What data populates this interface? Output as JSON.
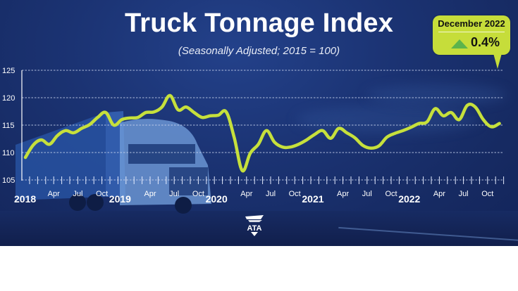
{
  "header": {
    "title": "Truck Tonnage Index",
    "subtitle": "(Seasonally Adjusted; 2015 = 100)"
  },
  "callout": {
    "month": "December 2022",
    "change": "0.4%",
    "direction": "up-arrow-icon"
  },
  "logo": {
    "text": "ATA"
  },
  "colors": {
    "background": "#1b3373",
    "line": "#c6e03c",
    "callout": "#c6dd3a",
    "arrow": "#5cb44c",
    "grid": "#ffffff"
  },
  "chart_data": {
    "type": "line",
    "title": "Truck Tonnage Index",
    "subtitle": "(Seasonally Adjusted; 2015 = 100)",
    "xlabel": "",
    "ylabel": "",
    "ylim": [
      105,
      125
    ],
    "yticks": [
      105,
      110,
      115,
      120,
      125
    ],
    "grid": "horizontal dashed",
    "legend": "none",
    "x_tick_labels": [
      "2018",
      "Apr",
      "Jul",
      "Oct",
      "2019",
      "Apr",
      "Jul",
      "Oct",
      "2020",
      "Apr",
      "Jul",
      "Oct",
      "2021",
      "Apr",
      "Jul",
      "Oct",
      "2022",
      "Apr",
      "Jul",
      "Oct"
    ],
    "annotation": "December 2022 ▲ 0.4%",
    "x": [
      "2018-01",
      "2018-02",
      "2018-03",
      "2018-04",
      "2018-05",
      "2018-06",
      "2018-07",
      "2018-08",
      "2018-09",
      "2018-10",
      "2018-11",
      "2018-12",
      "2019-01",
      "2019-02",
      "2019-03",
      "2019-04",
      "2019-05",
      "2019-06",
      "2019-07",
      "2019-08",
      "2019-09",
      "2019-10",
      "2019-11",
      "2019-12",
      "2020-01",
      "2020-02",
      "2020-03",
      "2020-04",
      "2020-05",
      "2020-06",
      "2020-07",
      "2020-08",
      "2020-09",
      "2020-10",
      "2020-11",
      "2020-12",
      "2021-01",
      "2021-02",
      "2021-03",
      "2021-04",
      "2021-05",
      "2021-06",
      "2021-07",
      "2021-08",
      "2021-09",
      "2021-10",
      "2021-11",
      "2021-12",
      "2022-01",
      "2022-02",
      "2022-03",
      "2022-04",
      "2022-05",
      "2022-06",
      "2022-07",
      "2022-08",
      "2022-09",
      "2022-10",
      "2022-11",
      "2022-12"
    ],
    "series": [
      {
        "name": "Truck Tonnage Index",
        "values": [
          109.1,
          111.4,
          112.3,
          111.5,
          113.1,
          114.0,
          113.6,
          114.4,
          115.1,
          116.4,
          117.3,
          115.0,
          116.0,
          116.3,
          116.4,
          117.3,
          117.4,
          118.3,
          120.4,
          117.8,
          118.3,
          117.3,
          116.4,
          116.7,
          116.8,
          117.4,
          112.7,
          106.7,
          109.9,
          111.5,
          114.0,
          111.9,
          111.0,
          111.0,
          111.5,
          112.3,
          113.3,
          114.0,
          112.6,
          114.4,
          113.6,
          112.7,
          111.3,
          110.8,
          111.2,
          112.8,
          113.5,
          114.0,
          114.6,
          115.3,
          115.6,
          118.0,
          116.7,
          117.3,
          116.0,
          118.6,
          118.3,
          116.0,
          114.7,
          115.3
        ]
      }
    ]
  }
}
